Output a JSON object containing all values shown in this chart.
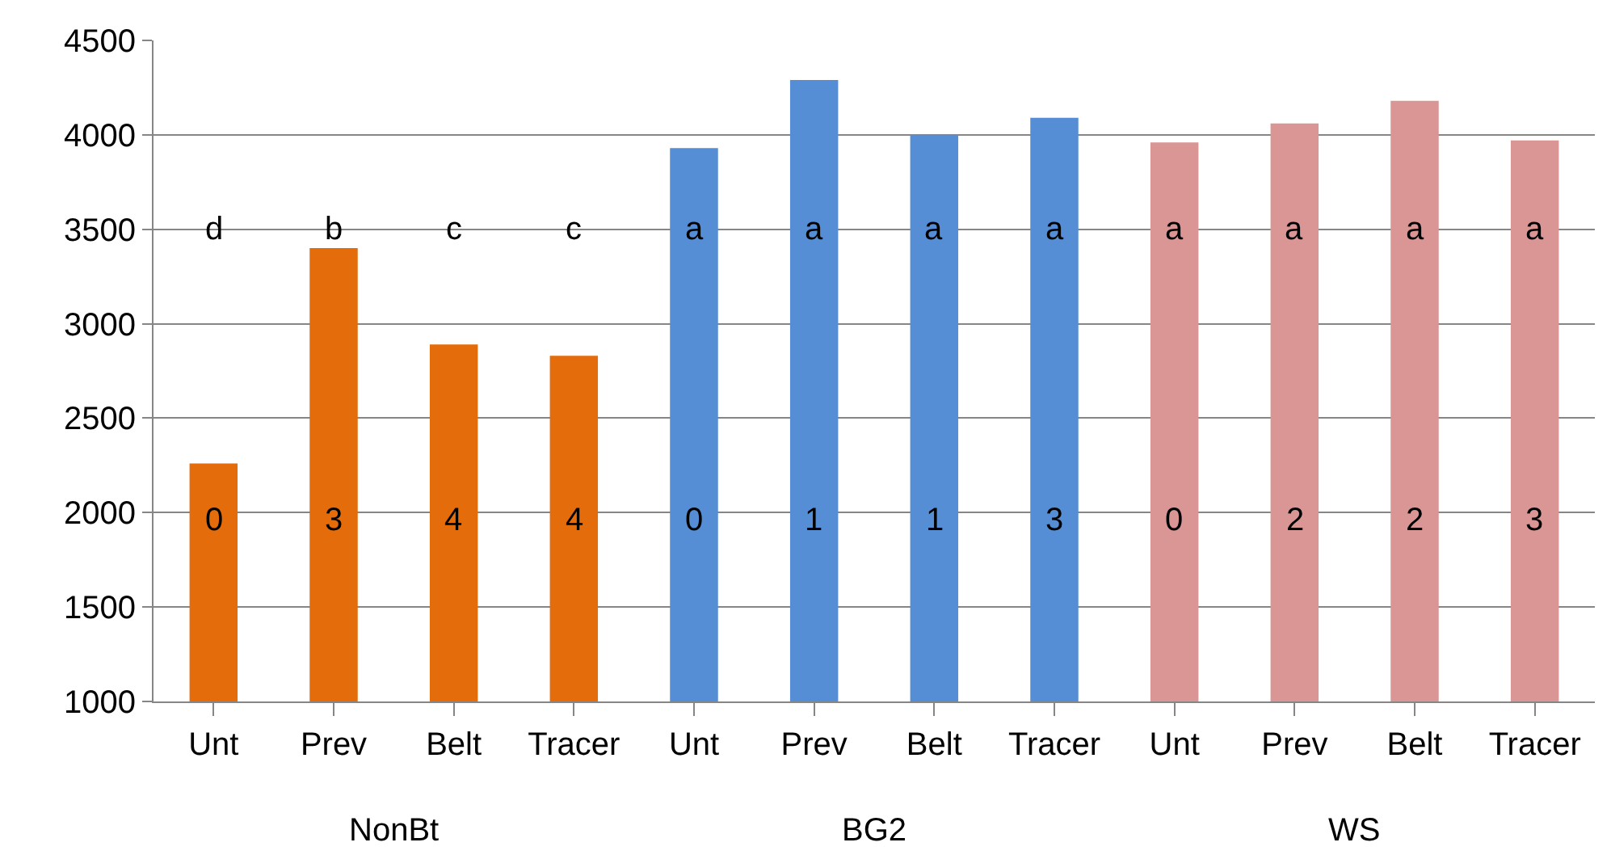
{
  "chart_data": {
    "type": "bar",
    "categories": [
      "Unt",
      "Prev",
      "Belt",
      "Tracer",
      "Unt",
      "Prev",
      "Belt",
      "Tracer",
      "Unt",
      "Prev",
      "Belt",
      "Tracer"
    ],
    "values": [
      2260,
      3400,
      2890,
      2830,
      3930,
      4290,
      4000,
      4090,
      3960,
      4060,
      4180,
      3970
    ],
    "colors": [
      "#e46c0a",
      "#e46c0a",
      "#e46c0a",
      "#e46c0a",
      "#558ed5",
      "#558ed5",
      "#558ed5",
      "#558ed5",
      "#d99694",
      "#d99694",
      "#d99694",
      "#d99694"
    ],
    "ylim": [
      1000,
      4500
    ],
    "yticks": [
      1000,
      1500,
      2000,
      2500,
      3000,
      3500,
      4000,
      4500
    ],
    "grid": "y",
    "annotations": [
      "d",
      "b",
      "c",
      "c",
      "a",
      "a",
      "a",
      "a",
      "a",
      "a",
      "a",
      "a",
      "0",
      "3",
      "4",
      "4",
      "0",
      "1",
      "1",
      "3",
      "0",
      "2",
      "2",
      "3",
      "NonBt",
      "BG2",
      "WS"
    ]
  }
}
